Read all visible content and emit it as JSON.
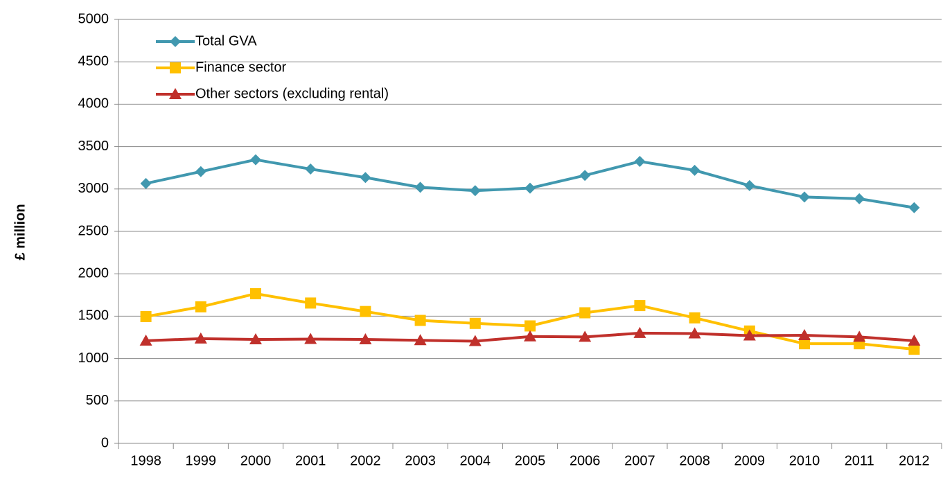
{
  "chart_data": {
    "type": "line",
    "y_label": "£ million",
    "categories": [
      "1998",
      "1999",
      "2000",
      "2001",
      "2002",
      "2003",
      "2004",
      "2005",
      "2006",
      "2007",
      "2008",
      "2009",
      "2010",
      "2011",
      "2012"
    ],
    "series": [
      {
        "name": "Total GVA",
        "color": "#4198af",
        "marker": "diamond",
        "values": [
          3065,
          3205,
          3345,
          3235,
          3135,
          3020,
          2980,
          3010,
          3160,
          3325,
          3220,
          3040,
          2905,
          2885,
          2780
        ]
      },
      {
        "name": "Finance sector",
        "color": "#ffc000",
        "marker": "square",
        "values": [
          1495,
          1610,
          1765,
          1655,
          1555,
          1450,
          1415,
          1385,
          1540,
          1625,
          1480,
          1325,
          1175,
          1175,
          1110
        ]
      },
      {
        "name": "Other sectors (excluding rental)",
        "color": "#c0302b",
        "marker": "triangle",
        "values": [
          1210,
          1235,
          1225,
          1230,
          1225,
          1215,
          1205,
          1260,
          1255,
          1300,
          1295,
          1270,
          1275,
          1255,
          1210
        ]
      }
    ],
    "ylim": [
      0,
      5000
    ],
    "yticks": [
      0,
      500,
      1000,
      1500,
      2000,
      2500,
      3000,
      3500,
      4000,
      4500,
      5000
    ],
    "grid": true,
    "legend": "top-left"
  }
}
